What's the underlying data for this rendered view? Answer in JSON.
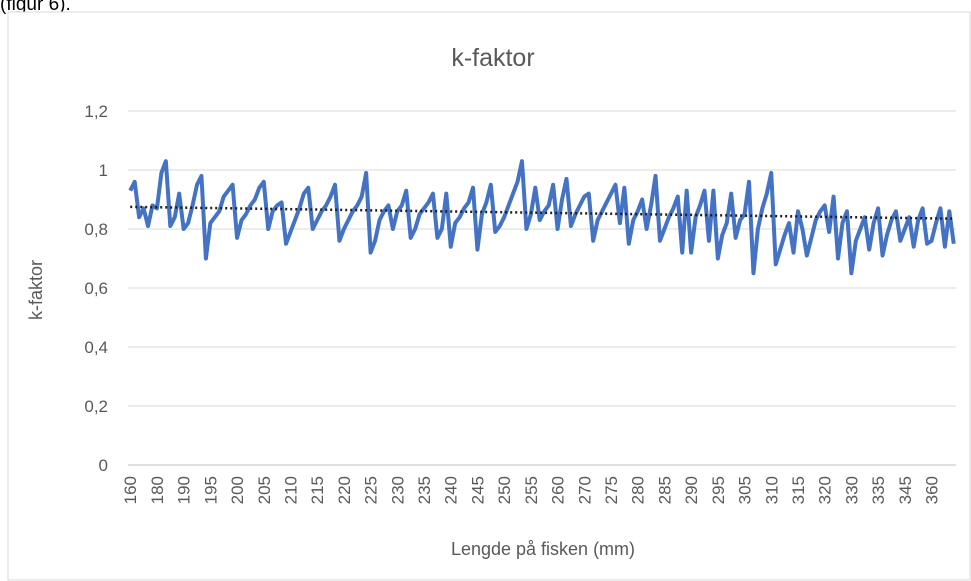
{
  "caption": "(figur 6).",
  "chart_data": {
    "type": "line",
    "title": "k-faktor",
    "x_label": "Lengde på fisken (mm)",
    "y_label": "k-faktor",
    "categories": [
      "160",
      null,
      null,
      null,
      null,
      null,
      "180",
      null,
      null,
      null,
      null,
      null,
      "190",
      null,
      null,
      null,
      null,
      null,
      "195",
      null,
      null,
      null,
      null,
      null,
      "200",
      null,
      null,
      null,
      null,
      null,
      "205",
      null,
      null,
      null,
      null,
      null,
      "210",
      null,
      null,
      null,
      null,
      null,
      "215",
      null,
      null,
      null,
      null,
      null,
      "220",
      null,
      null,
      null,
      null,
      null,
      "225",
      null,
      null,
      null,
      null,
      null,
      "230",
      null,
      null,
      null,
      null,
      null,
      "235",
      null,
      null,
      null,
      null,
      null,
      "240",
      null,
      null,
      null,
      null,
      null,
      "245",
      null,
      null,
      null,
      null,
      null,
      "250",
      null,
      null,
      null,
      null,
      null,
      "255",
      null,
      null,
      null,
      null,
      null,
      "260",
      null,
      null,
      null,
      null,
      null,
      "270",
      null,
      null,
      null,
      null,
      null,
      "275",
      null,
      null,
      null,
      null,
      null,
      "280",
      null,
      null,
      null,
      null,
      null,
      "285",
      null,
      null,
      null,
      null,
      null,
      "290",
      null,
      null,
      null,
      null,
      null,
      "295",
      null,
      null,
      null,
      null,
      null,
      "305",
      null,
      null,
      null,
      null,
      null,
      "310",
      null,
      null,
      null,
      null,
      null,
      "315",
      null,
      null,
      null,
      null,
      null,
      "320",
      null,
      null,
      null,
      null,
      null,
      "330",
      null,
      null,
      null,
      null,
      null,
      "335",
      null,
      null,
      null,
      null,
      null,
      "345",
      null,
      null,
      null,
      null,
      null,
      "360",
      null,
      null,
      null,
      null,
      null
    ],
    "series": [
      {
        "name": "k-faktor",
        "color": "#4472c4",
        "values": [
          0.93,
          0.96,
          0.84,
          0.87,
          0.81,
          0.88,
          0.87,
          0.99,
          1.03,
          0.81,
          0.84,
          0.92,
          0.8,
          0.82,
          0.88,
          0.95,
          0.98,
          0.7,
          0.82,
          0.84,
          0.86,
          0.91,
          0.93,
          0.95,
          0.77,
          0.83,
          0.85,
          0.88,
          0.9,
          0.94,
          0.96,
          0.8,
          0.86,
          0.88,
          0.89,
          0.75,
          0.79,
          0.83,
          0.87,
          0.92,
          0.94,
          0.8,
          0.83,
          0.86,
          0.88,
          0.91,
          0.95,
          0.76,
          0.8,
          0.83,
          0.86,
          0.88,
          0.91,
          0.99,
          0.72,
          0.76,
          0.83,
          0.86,
          0.88,
          0.8,
          0.86,
          0.88,
          0.93,
          0.77,
          0.8,
          0.85,
          0.87,
          0.89,
          0.92,
          0.77,
          0.8,
          0.92,
          0.74,
          0.82,
          0.84,
          0.87,
          0.89,
          0.94,
          0.73,
          0.85,
          0.89,
          0.95,
          0.79,
          0.81,
          0.84,
          0.88,
          0.92,
          0.96,
          1.03,
          0.8,
          0.85,
          0.94,
          0.83,
          0.86,
          0.88,
          0.95,
          0.8,
          0.9,
          0.97,
          0.81,
          0.85,
          0.88,
          0.91,
          0.92,
          0.76,
          0.83,
          0.86,
          0.89,
          0.92,
          0.95,
          0.82,
          0.94,
          0.75,
          0.83,
          0.86,
          0.9,
          0.8,
          0.88,
          0.98,
          0.76,
          0.8,
          0.84,
          0.87,
          0.91,
          0.72,
          0.93,
          0.72,
          0.84,
          0.88,
          0.93,
          0.76,
          0.93,
          0.7,
          0.78,
          0.82,
          0.92,
          0.77,
          0.83,
          0.85,
          0.96,
          0.65,
          0.8,
          0.87,
          0.92,
          0.99,
          0.68,
          0.73,
          0.78,
          0.82,
          0.72,
          0.86,
          0.8,
          0.71,
          0.77,
          0.83,
          0.86,
          0.88,
          0.79,
          0.91,
          0.7,
          0.82,
          0.86,
          0.65,
          0.76,
          0.8,
          0.84,
          0.73,
          0.82,
          0.87,
          0.71,
          0.78,
          0.83,
          0.86,
          0.76,
          0.8,
          0.84,
          0.74,
          0.83,
          0.87,
          0.75,
          0.76,
          0.82,
          0.87,
          0.74,
          0.86,
          0.75
        ]
      }
    ],
    "trendline": {
      "color": "#1f1f1f",
      "values": [
        0.875,
        0.835
      ]
    },
    "ylim": [
      0,
      1.2
    ],
    "yticks": [
      0,
      {
        "value": 0.2,
        "label": "0,2"
      },
      {
        "value": 0.4,
        "label": "0,4"
      },
      {
        "value": 0.6,
        "label": "0,6"
      },
      {
        "value": 0.8,
        "label": "0,8"
      },
      1,
      {
        "value": 1.2,
        "label": "1,2"
      }
    ],
    "grid": true
  }
}
